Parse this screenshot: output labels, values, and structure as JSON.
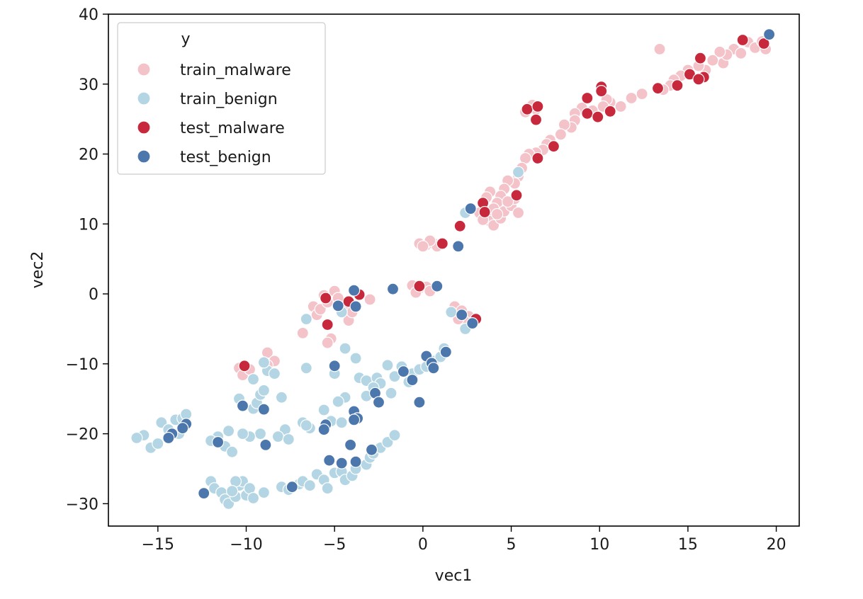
{
  "chart_data": {
    "type": "scatter",
    "xlabel": "vec1",
    "ylabel": "vec2",
    "xlim": [
      -17.8,
      21.3
    ],
    "ylim": [
      -33.2,
      40.0
    ],
    "xticks": [
      -15,
      -10,
      -5,
      0,
      5,
      10,
      15,
      20
    ],
    "yticks": [
      -30,
      -20,
      -10,
      0,
      10,
      20,
      30,
      40
    ],
    "xtick_labels": [
      "−15",
      "−10",
      "−5",
      "0",
      "5",
      "10",
      "15",
      "20"
    ],
    "ytick_labels": [
      "−30",
      "−20",
      "−10",
      "0",
      "10",
      "20",
      "30",
      "40"
    ],
    "grid": false,
    "legend": {
      "title": "y",
      "placement": "top-left",
      "entries": [
        "train_malware",
        "train_benign",
        "test_malware",
        "test_benign"
      ]
    },
    "series": [
      {
        "name": "train_malware",
        "color": "#f4c2c9",
        "points": [
          [
            13.4,
            35
          ],
          [
            17,
            33
          ],
          [
            17.6,
            35
          ],
          [
            18,
            34.4
          ],
          [
            18.4,
            36
          ],
          [
            18.8,
            35.2
          ],
          [
            19.2,
            36.1
          ],
          [
            19.4,
            35
          ],
          [
            17.2,
            34.2
          ],
          [
            16.8,
            34.6
          ],
          [
            16.4,
            33.4
          ],
          [
            16,
            32
          ],
          [
            15.6,
            32.6
          ],
          [
            15,
            32
          ],
          [
            14.6,
            31.2
          ],
          [
            14.2,
            30.6
          ],
          [
            14,
            29.8
          ],
          [
            13.6,
            29.2
          ],
          [
            12.4,
            28.6
          ],
          [
            11.8,
            28
          ],
          [
            11.2,
            26.8
          ],
          [
            10.6,
            27.4
          ],
          [
            10.4,
            27.8
          ],
          [
            10.2,
            26.8
          ],
          [
            9.6,
            26.2
          ],
          [
            9,
            26.6
          ],
          [
            8.6,
            25.8
          ],
          [
            8.6,
            24.8
          ],
          [
            8.4,
            23.8
          ],
          [
            8,
            24.2
          ],
          [
            7.8,
            22.8
          ],
          [
            7.2,
            22
          ],
          [
            7,
            21.4
          ],
          [
            6.8,
            20.6
          ],
          [
            6.4,
            20.2
          ],
          [
            6,
            20
          ],
          [
            5.8,
            19.4
          ],
          [
            5.6,
            18
          ],
          [
            5.4,
            16.8
          ],
          [
            5.2,
            15.8
          ],
          [
            4.8,
            16.2
          ],
          [
            4.6,
            15
          ],
          [
            4.4,
            14
          ],
          [
            4.2,
            13
          ],
          [
            4,
            12.2
          ],
          [
            3.8,
            14.6
          ],
          [
            3.6,
            13.8
          ],
          [
            3.4,
            12.8
          ],
          [
            3.2,
            11.6
          ],
          [
            3.6,
            11
          ],
          [
            3.8,
            10.4
          ],
          [
            4,
            9.8
          ],
          [
            4.4,
            10.8
          ],
          [
            4.6,
            11.8
          ],
          [
            5,
            12.6
          ],
          [
            5.2,
            13.6
          ],
          [
            5.4,
            11.6
          ],
          [
            4.8,
            13.2
          ],
          [
            4.2,
            11.4
          ],
          [
            3.4,
            10.6
          ],
          [
            6,
            26.6
          ],
          [
            6.4,
            26.4
          ],
          [
            6.2,
            27
          ],
          [
            5.8,
            26
          ],
          [
            -0.2,
            7.2
          ],
          [
            0.2,
            7
          ],
          [
            0.6,
            7.2
          ],
          [
            0.8,
            6.8
          ],
          [
            0.4,
            7.6
          ],
          [
            0,
            6.8
          ],
          [
            -0.6,
            1.2
          ],
          [
            -0.2,
            0.8
          ],
          [
            0.2,
            1
          ],
          [
            0.4,
            0.4
          ],
          [
            -0.4,
            0.2
          ],
          [
            1.8,
            -1.8
          ],
          [
            2.2,
            -2.4
          ],
          [
            2.6,
            -3.2
          ],
          [
            2.4,
            -4
          ],
          [
            2,
            -3.6
          ],
          [
            -6.2,
            -1.8
          ],
          [
            -6,
            -3
          ],
          [
            -5.8,
            -2.2
          ],
          [
            -5.4,
            -1.2
          ],
          [
            -5,
            0.4
          ],
          [
            -4.8,
            -0.6
          ],
          [
            -4.4,
            -1.8
          ],
          [
            -4.2,
            -3.8
          ],
          [
            -5.2,
            -6.4
          ],
          [
            -5.4,
            -7
          ],
          [
            -6.8,
            -5.6
          ],
          [
            -3,
            -0.8
          ],
          [
            -4,
            -2.6
          ],
          [
            -5.6,
            -0.2
          ],
          [
            -10.4,
            -10.6
          ],
          [
            -10.2,
            -11.6
          ],
          [
            -9.8,
            -10.8
          ],
          [
            -8.8,
            -8.4
          ],
          [
            -8.4,
            -9.6
          ],
          [
            -8.8,
            -10.2
          ]
        ]
      },
      {
        "name": "train_benign",
        "color": "#b4d6e4",
        "points": [
          [
            5.4,
            17.4
          ],
          [
            2.4,
            11.6
          ],
          [
            -6.6,
            -3.6
          ],
          [
            -4.6,
            -2.6
          ],
          [
            -4.4,
            -7.8
          ],
          [
            -3.8,
            -9.2
          ],
          [
            -3.6,
            -12
          ],
          [
            -3.2,
            -12.4
          ],
          [
            -2.6,
            -12
          ],
          [
            -2.4,
            -12.8
          ],
          [
            -2,
            -10.2
          ],
          [
            -1.6,
            -11.8
          ],
          [
            -1.2,
            -10.4
          ],
          [
            -0.8,
            -12.6
          ],
          [
            -0.6,
            -11.4
          ],
          [
            -0.2,
            -10.8
          ],
          [
            0.2,
            -10.4
          ],
          [
            0.6,
            -9.6
          ],
          [
            1,
            -9
          ],
          [
            1.2,
            -7.8
          ],
          [
            -1.8,
            -14.2
          ],
          [
            -2.8,
            -13.4
          ],
          [
            -3.2,
            -14.6
          ],
          [
            -4.4,
            -14.8
          ],
          [
            -4.8,
            -15.4
          ],
          [
            -5.6,
            -16.6
          ],
          [
            -5.2,
            -18.2
          ],
          [
            -4.6,
            -18.4
          ],
          [
            -6.6,
            -10.6
          ],
          [
            -5,
            -11.4
          ],
          [
            -6.8,
            -18.4
          ],
          [
            -6.4,
            -19.2
          ],
          [
            -6.6,
            -18.8
          ],
          [
            -7.8,
            -19.4
          ],
          [
            -8.2,
            -20.4
          ],
          [
            -7.6,
            -20.8
          ],
          [
            -9.2,
            -20
          ],
          [
            -9.8,
            -20.4
          ],
          [
            -10.2,
            -20
          ],
          [
            -11,
            -19.6
          ],
          [
            -11.6,
            -20.4
          ],
          [
            -12,
            -21
          ],
          [
            -11.2,
            -21.8
          ],
          [
            -10.8,
            -22.6
          ],
          [
            -9.6,
            -16.4
          ],
          [
            -9.4,
            -15.6
          ],
          [
            -9.2,
            -14.4
          ],
          [
            -9,
            -13.8
          ],
          [
            -9.6,
            -12.2
          ],
          [
            -8.8,
            -11
          ],
          [
            -8.4,
            -11.4
          ],
          [
            -9,
            -9.8
          ],
          [
            -10.4,
            -15
          ],
          [
            -10.2,
            -16
          ],
          [
            -8,
            -14.8
          ],
          [
            -15.8,
            -20.2
          ],
          [
            -16.2,
            -20.6
          ],
          [
            -15.4,
            -22
          ],
          [
            -15,
            -21.4
          ],
          [
            -14.8,
            -18.4
          ],
          [
            -14.4,
            -19.4
          ],
          [
            -14,
            -18
          ],
          [
            -13.6,
            -17.8
          ],
          [
            -13.4,
            -17.2
          ],
          [
            -13.8,
            -20
          ],
          [
            -12,
            -26.8
          ],
          [
            -11.8,
            -27.8
          ],
          [
            -11.4,
            -28.4
          ],
          [
            -11.2,
            -29.4
          ],
          [
            -11,
            -30
          ],
          [
            -10.6,
            -29
          ],
          [
            -10.4,
            -27.4
          ],
          [
            -10.2,
            -26.8
          ],
          [
            -10,
            -28.8
          ],
          [
            -9.8,
            -27.8
          ],
          [
            -10.6,
            -26.8
          ],
          [
            -10.8,
            -28.2
          ],
          [
            -9.6,
            -29.2
          ],
          [
            -9,
            -28.4
          ],
          [
            -8,
            -27.6
          ],
          [
            -7.6,
            -28
          ],
          [
            -7,
            -27.2
          ],
          [
            -6.8,
            -26.8
          ],
          [
            -6.4,
            -27.4
          ],
          [
            -6,
            -25.8
          ],
          [
            -5.6,
            -26.6
          ],
          [
            -5.4,
            -27.8
          ],
          [
            -5,
            -25.6
          ],
          [
            -4.6,
            -25.4
          ],
          [
            -4.4,
            -26.6
          ],
          [
            -4,
            -26
          ],
          [
            -3.8,
            -25
          ],
          [
            -3.2,
            -24.4
          ],
          [
            -3,
            -23.4
          ],
          [
            -2.8,
            -22.8
          ],
          [
            -2.4,
            -22
          ],
          [
            -2,
            -21.2
          ],
          [
            -1.6,
            -20.2
          ],
          [
            1.6,
            -2.6
          ],
          [
            2.4,
            -5
          ]
        ]
      },
      {
        "name": "test_malware",
        "color": "#c8283c",
        "points": [
          [
            18.1,
            36.3
          ],
          [
            19.3,
            35.8
          ],
          [
            15.7,
            33.7
          ],
          [
            15.1,
            31.4
          ],
          [
            15.9,
            31
          ],
          [
            15.6,
            30.7
          ],
          [
            14.4,
            29.8
          ],
          [
            13.3,
            29.4
          ],
          [
            10.1,
            29.6
          ],
          [
            10.1,
            29
          ],
          [
            9.3,
            28
          ],
          [
            9.3,
            25.8
          ],
          [
            9.9,
            25.3
          ],
          [
            10.6,
            26.1
          ],
          [
            7.4,
            21.1
          ],
          [
            6.5,
            19.4
          ],
          [
            5.9,
            26.4
          ],
          [
            6.5,
            26.8
          ],
          [
            6.4,
            24.9
          ],
          [
            5.3,
            14.1
          ],
          [
            3.4,
            13
          ],
          [
            3.5,
            11.7
          ],
          [
            2.1,
            9.7
          ],
          [
            1.1,
            7.2
          ],
          [
            -0.2,
            1.1
          ],
          [
            3,
            -3.6
          ],
          [
            -3.6,
            -0.1
          ],
          [
            -4.2,
            -1.1
          ],
          [
            -5.5,
            -0.6
          ],
          [
            -5.4,
            -4.4
          ],
          [
            -10.1,
            -10.3
          ]
        ]
      },
      {
        "name": "test_benign",
        "color": "#4c77ac",
        "points": [
          [
            19.6,
            37.1
          ],
          [
            2.7,
            12.2
          ],
          [
            2,
            6.8
          ],
          [
            0.8,
            1.1
          ],
          [
            -1.7,
            0.7
          ],
          [
            -3.9,
            0.5
          ],
          [
            -3.8,
            -1.8
          ],
          [
            -4.8,
            -1.7
          ],
          [
            2.2,
            -3
          ],
          [
            2.8,
            -4.2
          ],
          [
            0.2,
            -8.9
          ],
          [
            0.5,
            -9.9
          ],
          [
            0.6,
            -10.6
          ],
          [
            1.3,
            -8.3
          ],
          [
            -0.6,
            -12.3
          ],
          [
            -1.1,
            -11.1
          ],
          [
            -0.2,
            -15.5
          ],
          [
            -2.7,
            -14.2
          ],
          [
            -2.5,
            -15.5
          ],
          [
            -3.9,
            -16.8
          ],
          [
            -3.7,
            -17.8
          ],
          [
            -5,
            -10.3
          ],
          [
            -5.5,
            -18.7
          ],
          [
            -5.6,
            -19.4
          ],
          [
            -3.9,
            -18
          ],
          [
            -4.1,
            -21.6
          ],
          [
            -5.3,
            -23.8
          ],
          [
            -4.6,
            -24.2
          ],
          [
            -3.8,
            -24
          ],
          [
            -2.9,
            -22.3
          ],
          [
            -7.4,
            -27.6
          ],
          [
            -9,
            -16.5
          ],
          [
            -10.2,
            -16
          ],
          [
            -8.9,
            -21.6
          ],
          [
            -11.6,
            -21.2
          ],
          [
            -12.4,
            -28.5
          ],
          [
            -13.4,
            -18.6
          ],
          [
            -13.6,
            -19.2
          ],
          [
            -14.2,
            -20
          ],
          [
            -14.4,
            -20.6
          ]
        ]
      }
    ]
  }
}
